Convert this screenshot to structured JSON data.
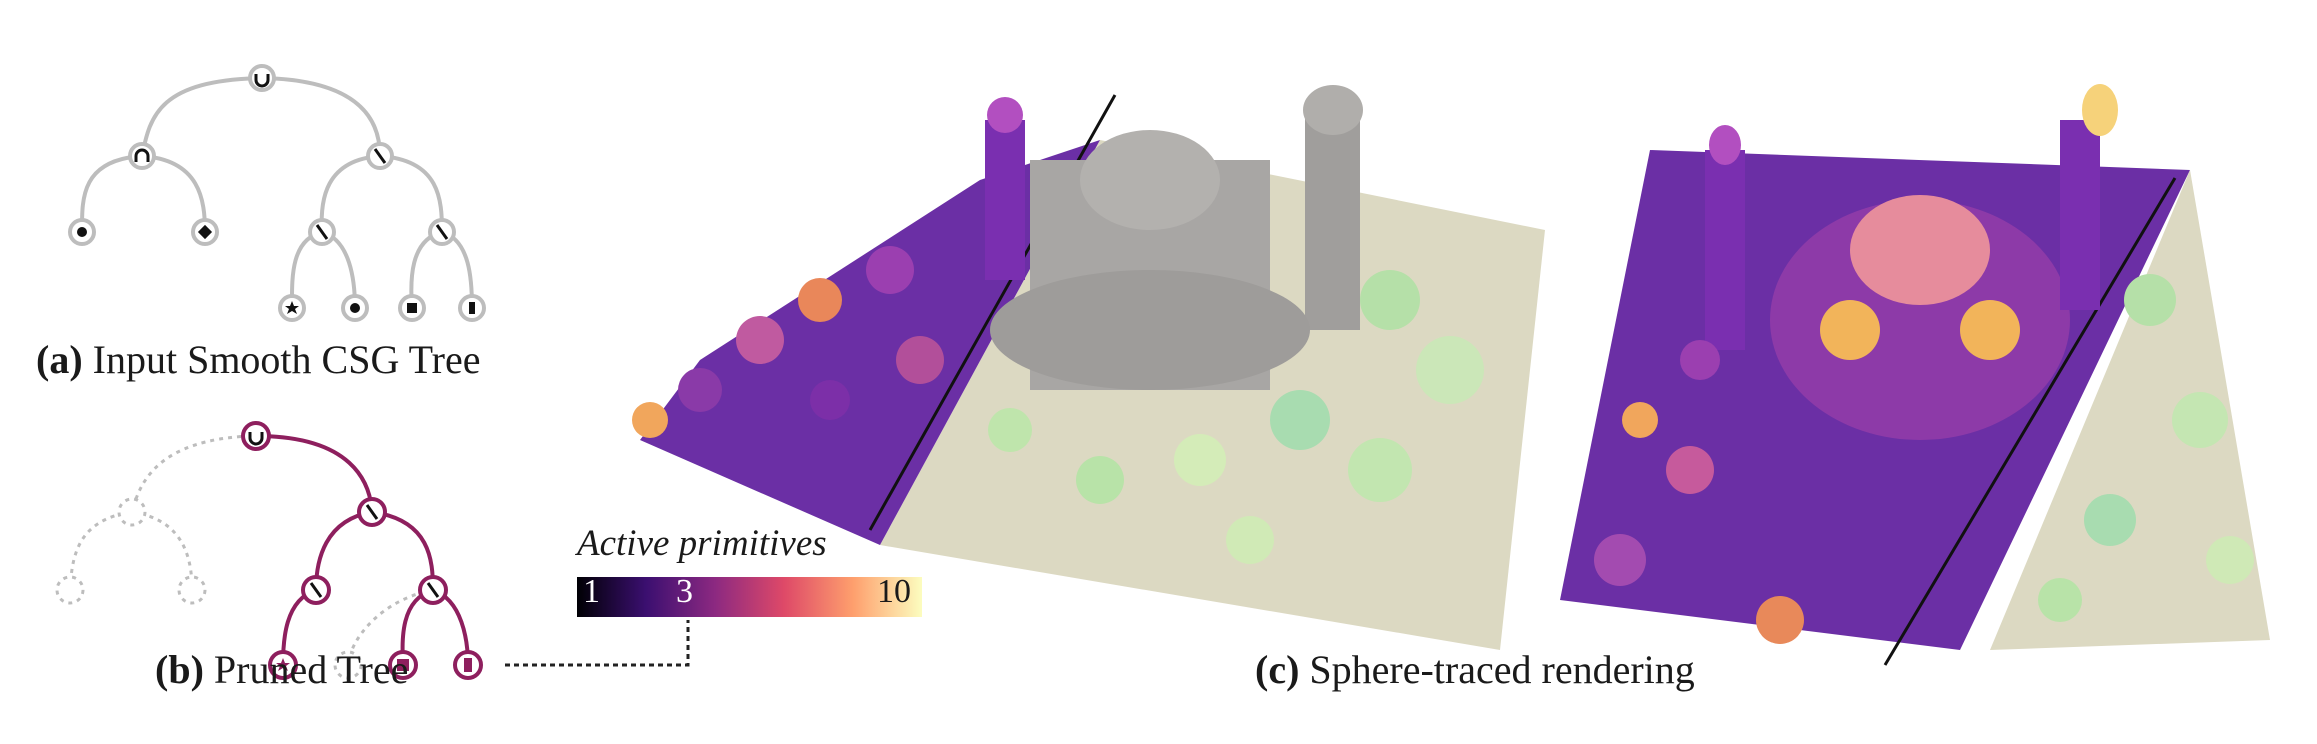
{
  "panels": {
    "a": {
      "letter": "(a)",
      "text": "Input Smooth CSG Tree"
    },
    "b": {
      "letter": "(b)",
      "text": "Pruned Tree"
    },
    "c": {
      "letter": "(c)",
      "text": "Sphere-traced rendering"
    }
  },
  "legend": {
    "title": "Active primitives",
    "ticks": [
      "1",
      "3",
      "10"
    ],
    "gradient_colors": [
      "#000004",
      "#3b0f70",
      "#8c2981",
      "#de4968",
      "#fe9f6d",
      "#fcfdbf"
    ]
  },
  "tree_icons": {
    "union": "union-icon",
    "intersection": "intersection-icon",
    "difference": "difference-icon",
    "leaves": [
      "circle-icon",
      "diamond-icon",
      "star-icon",
      "circle-icon",
      "square-icon",
      "rect-icon"
    ]
  },
  "colors": {
    "tree_gray": "#bdbdbd",
    "tree_purple": "#8e1f5e",
    "ground": "#dcd9c2",
    "plate_purple": "#6b2fa5",
    "building_gray": "#a8a6a4",
    "tree_green": "#b5e0a8"
  }
}
